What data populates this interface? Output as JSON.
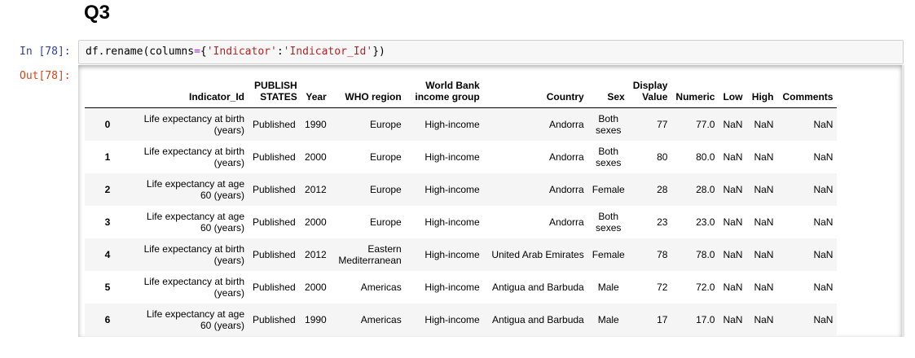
{
  "heading": "Q3",
  "input_cell": {
    "prompt": "In [78]:",
    "code": {
      "prefix": "df.rename(columns",
      "eq": "=",
      "brace_open": "{",
      "key": "'Indicator'",
      "colon": ":",
      "value": "'Indicator_Id'",
      "brace_close": "}",
      "suffix": ")"
    }
  },
  "output_cell": {
    "prompt": "Out[78]:",
    "columns": [
      "",
      "Indicator_Id",
      "PUBLISH STATES",
      "Year",
      "WHO region",
      "World Bank income group",
      "Country",
      "Sex",
      "Display Value",
      "Numeric",
      "Low",
      "High",
      "Comments"
    ],
    "rows": [
      [
        "0",
        "Life expectancy at birth (years)",
        "Published",
        "1990",
        "Europe",
        "High-income",
        "Andorra",
        "Both sexes",
        "77",
        "77.0",
        "NaN",
        "NaN",
        "NaN"
      ],
      [
        "1",
        "Life expectancy at birth (years)",
        "Published",
        "2000",
        "Europe",
        "High-income",
        "Andorra",
        "Both sexes",
        "80",
        "80.0",
        "NaN",
        "NaN",
        "NaN"
      ],
      [
        "2",
        "Life expectancy at age 60 (years)",
        "Published",
        "2012",
        "Europe",
        "High-income",
        "Andorra",
        "Female",
        "28",
        "28.0",
        "NaN",
        "NaN",
        "NaN"
      ],
      [
        "3",
        "Life expectancy at age 60 (years)",
        "Published",
        "2000",
        "Europe",
        "High-income",
        "Andorra",
        "Both sexes",
        "23",
        "23.0",
        "NaN",
        "NaN",
        "NaN"
      ],
      [
        "4",
        "Life expectancy at birth (years)",
        "Published",
        "2012",
        "Eastern Mediterranean",
        "High-income",
        "United Arab Emirates",
        "Female",
        "78",
        "78.0",
        "NaN",
        "NaN",
        "NaN"
      ],
      [
        "5",
        "Life expectancy at birth (years)",
        "Published",
        "2000",
        "Americas",
        "High-income",
        "Antigua and Barbuda",
        "Male",
        "72",
        "72.0",
        "NaN",
        "NaN",
        "NaN"
      ],
      [
        "6",
        "Life expectancy at age 60 (years)",
        "Published",
        "1990",
        "Americas",
        "High-income",
        "Antigua and Barbuda",
        "Male",
        "17",
        "17.0",
        "NaN",
        "NaN",
        "NaN"
      ]
    ]
  },
  "colors": {
    "in_prompt": "#303f9f",
    "out_prompt": "#d84315",
    "string": "#ba2121",
    "operator": "#aa22ff",
    "stripe": "#f5f5f5"
  }
}
